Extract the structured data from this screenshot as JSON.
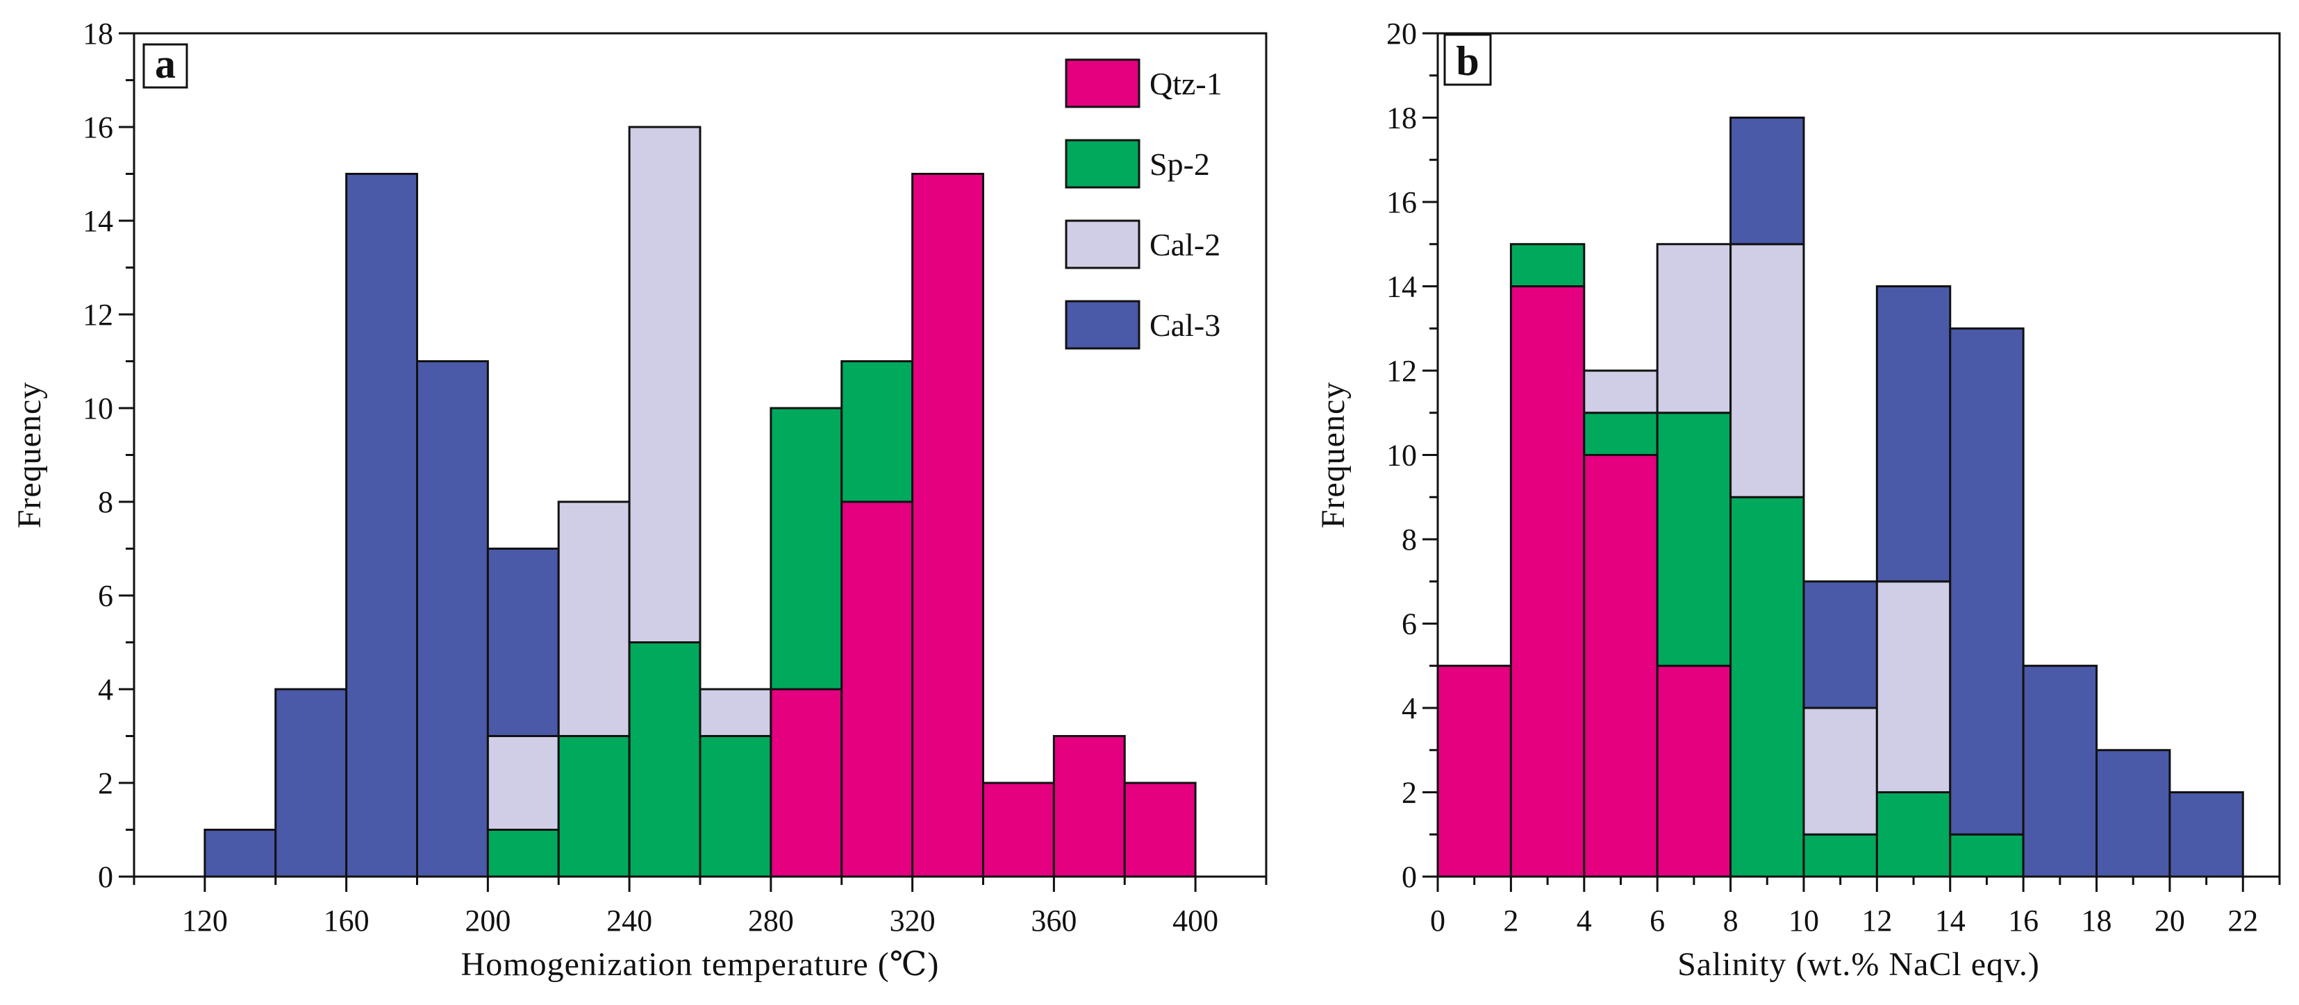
{
  "chart_data": [
    {
      "panel": "a",
      "type": "bar",
      "stacked": true,
      "xlabel": "Homogenization temperature (℃)",
      "ylabel": "Frequency",
      "xlim": [
        100,
        420
      ],
      "ylim": [
        0,
        18
      ],
      "xticks": [
        120,
        160,
        200,
        240,
        280,
        320,
        360,
        400
      ],
      "yticks": [
        0,
        2,
        4,
        6,
        8,
        10,
        12,
        14,
        16,
        18
      ],
      "bin_width": 20,
      "bin_starts": [
        120,
        140,
        160,
        180,
        200,
        220,
        240,
        260,
        280,
        300,
        320,
        340,
        360,
        380
      ],
      "series": [
        {
          "name": "Qtz-1",
          "color": "#e4007f",
          "values": [
            0,
            0,
            0,
            0,
            0,
            0,
            0,
            0,
            4,
            8,
            15,
            2,
            3,
            2
          ]
        },
        {
          "name": "Sp-2",
          "color": "#00a95c",
          "values": [
            0,
            0,
            0,
            0,
            1,
            3,
            5,
            3,
            6,
            3,
            0,
            0,
            0,
            0
          ]
        },
        {
          "name": "Cal-2",
          "color": "#d0cde6",
          "values": [
            0,
            0,
            0,
            0,
            2,
            5,
            11,
            1,
            0,
            0,
            0,
            0,
            0,
            0
          ]
        },
        {
          "name": "Cal-3",
          "color": "#4b59a9",
          "values": [
            1,
            4,
            15,
            11,
            4,
            0,
            0,
            0,
            0,
            0,
            0,
            0,
            0,
            0
          ]
        }
      ],
      "legend": {
        "position": "top-right",
        "entries": [
          "Qtz-1",
          "Sp-2",
          "Cal-2",
          "Cal-3"
        ]
      }
    },
    {
      "panel": "b",
      "type": "bar",
      "stacked": true,
      "xlabel": "Salinity (wt.% NaCl eqv.)",
      "ylabel": "Frequency",
      "xlim": [
        0,
        23
      ],
      "ylim": [
        0,
        20
      ],
      "xticks": [
        0,
        2,
        4,
        6,
        8,
        10,
        12,
        14,
        16,
        18,
        20,
        22
      ],
      "yticks": [
        0,
        2,
        4,
        6,
        8,
        10,
        12,
        14,
        16,
        18,
        20
      ],
      "bin_width": 2,
      "bin_starts": [
        0,
        2,
        4,
        6,
        8,
        10,
        12,
        14,
        16,
        18,
        20
      ],
      "series": [
        {
          "name": "Qtz-1",
          "color": "#e4007f",
          "values": [
            5,
            14,
            10,
            5,
            0,
            0,
            0,
            0,
            0,
            0,
            0
          ]
        },
        {
          "name": "Sp-2",
          "color": "#00a95c",
          "values": [
            0,
            1,
            1,
            6,
            9,
            1,
            2,
            1,
            0,
            0,
            0
          ]
        },
        {
          "name": "Cal-2",
          "color": "#d0cde6",
          "values": [
            0,
            0,
            1,
            4,
            6,
            3,
            5,
            0,
            0,
            0,
            0
          ]
        },
        {
          "name": "Cal-3",
          "color": "#4b59a9",
          "values": [
            0,
            0,
            0,
            0,
            3,
            3,
            7,
            12,
            5,
            3,
            2
          ]
        }
      ]
    }
  ]
}
